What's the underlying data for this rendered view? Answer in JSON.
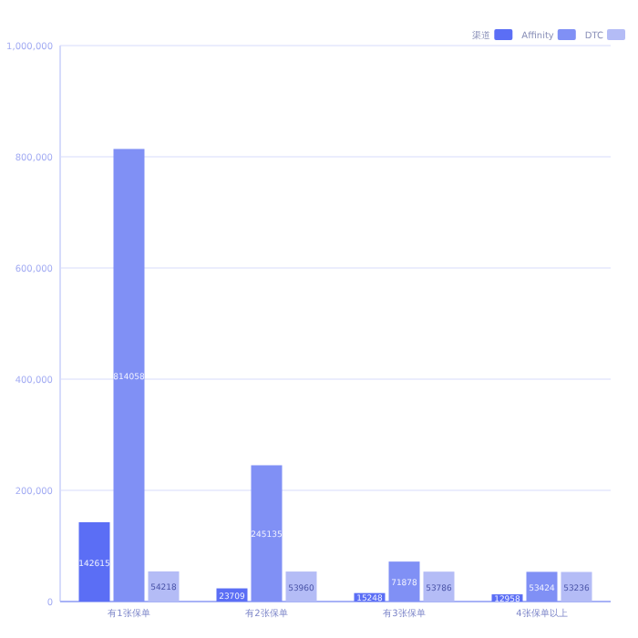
{
  "chart_data": {
    "type": "bar",
    "categories": [
      "有1张保单",
      "有2张保单",
      "有3张保单",
      "4张保单以上"
    ],
    "series": [
      {
        "name": "渠道",
        "color": "#5b6ef5",
        "values": [
          142615,
          23709,
          15248,
          12958
        ]
      },
      {
        "name": "Affinity",
        "color": "#8090f5",
        "values": [
          814058,
          245135,
          71878,
          53424
        ]
      },
      {
        "name": "DTC",
        "color": "#b4bcf6",
        "values": [
          54218,
          53960,
          53786,
          53236
        ]
      }
    ],
    "ylim": [
      0,
      1000000
    ],
    "yticks": [
      {
        "value": 0,
        "label": "0"
      },
      {
        "value": 200000,
        "label": "200,000"
      },
      {
        "value": 400000,
        "label": "400,000"
      },
      {
        "value": 600000,
        "label": "600,000"
      },
      {
        "value": 800000,
        "label": "800,000"
      },
      {
        "value": 1000000,
        "label": "1,000,000"
      }
    ],
    "grid": "y",
    "legend": "top right",
    "data_labels": true
  }
}
